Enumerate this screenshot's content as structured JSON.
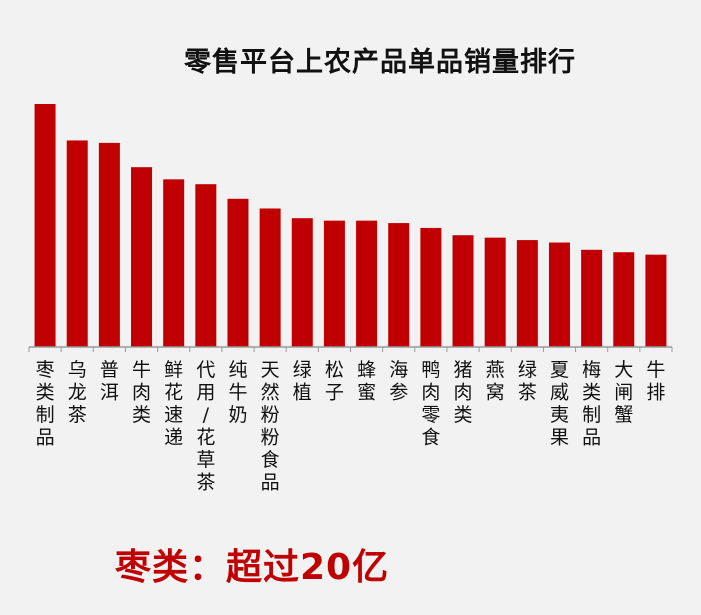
{
  "summary": "枣类：超过20亿",
  "chart_data": {
    "type": "bar",
    "title": "零售平台上农产品单品销量排行",
    "xlabel": "",
    "ylabel": "",
    "ylim": [
      0,
      100
    ],
    "grid": false,
    "legend": "none",
    "bar_color": "#c00000",
    "categories": [
      "枣类制品",
      "乌龙茶",
      "普洱",
      "牛肉类",
      "鲜花速递",
      "代用/花草茶",
      "纯牛奶",
      "天然粉粉食品",
      "绿植",
      "松子",
      "蜂蜜",
      "海参",
      "鸭肉零食",
      "猪肉类",
      "燕窝",
      "绿茶",
      "夏威夷果",
      "梅类制品",
      "大闸蟹",
      "牛排"
    ],
    "values": [
      100,
      85,
      84,
      74,
      69,
      67,
      61,
      57,
      53,
      52,
      52,
      51,
      49,
      46,
      45,
      44,
      43,
      40,
      39,
      38
    ]
  }
}
